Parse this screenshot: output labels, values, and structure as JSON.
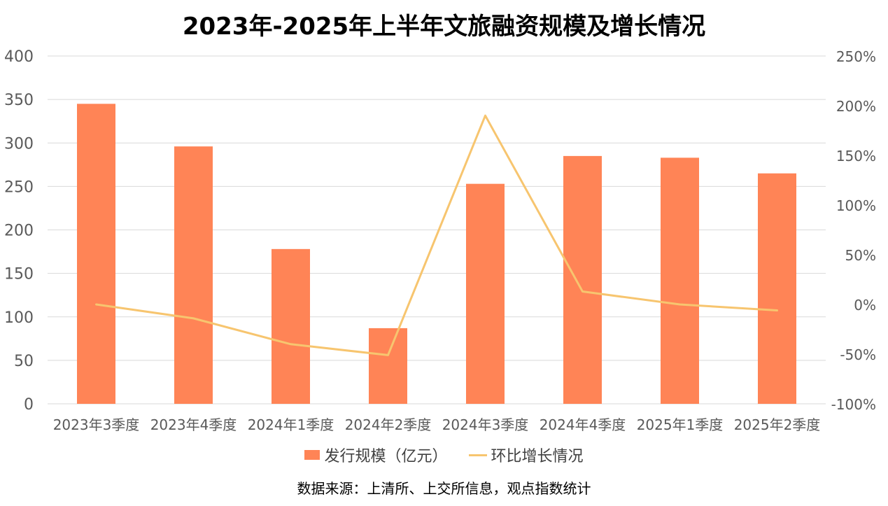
{
  "chart_data": {
    "type": "bar",
    "title": "2023年-2025年上半年文旅融资规模及增长情况",
    "categories": [
      "2023年3季度",
      "2023年4季度",
      "2024年1季度",
      "2024年2季度",
      "2024年3季度",
      "2024年4季度",
      "2025年1季度",
      "2025年2季度"
    ],
    "series": [
      {
        "name": "发行规模（亿元）",
        "type": "bar",
        "axis": "left",
        "values": [
          345,
          296,
          178,
          87,
          253,
          285,
          283,
          265
        ]
      },
      {
        "name": "环比增长情况",
        "type": "line",
        "axis": "right",
        "values": [
          0,
          -14,
          -40,
          -51,
          190,
          13,
          0,
          -6
        ]
      }
    ],
    "y_left": {
      "range": [
        0,
        400
      ],
      "ticks": [
        "0",
        "50",
        "100",
        "150",
        "200",
        "250",
        "300",
        "350",
        "400"
      ]
    },
    "y_right": {
      "range": [
        -100,
        250
      ],
      "ticks": [
        "-100%",
        "-50%",
        "0%",
        "50%",
        "100%",
        "150%",
        "200%",
        "250%"
      ]
    },
    "grid": true,
    "legend_position": "bottom",
    "colors": {
      "bar": "#FF8456",
      "line": "#F7C56F",
      "grid": "#D9D9D9",
      "axis_text": "#595959"
    },
    "source": "数据来源：上清所、上交所信息，观点指数统计"
  }
}
